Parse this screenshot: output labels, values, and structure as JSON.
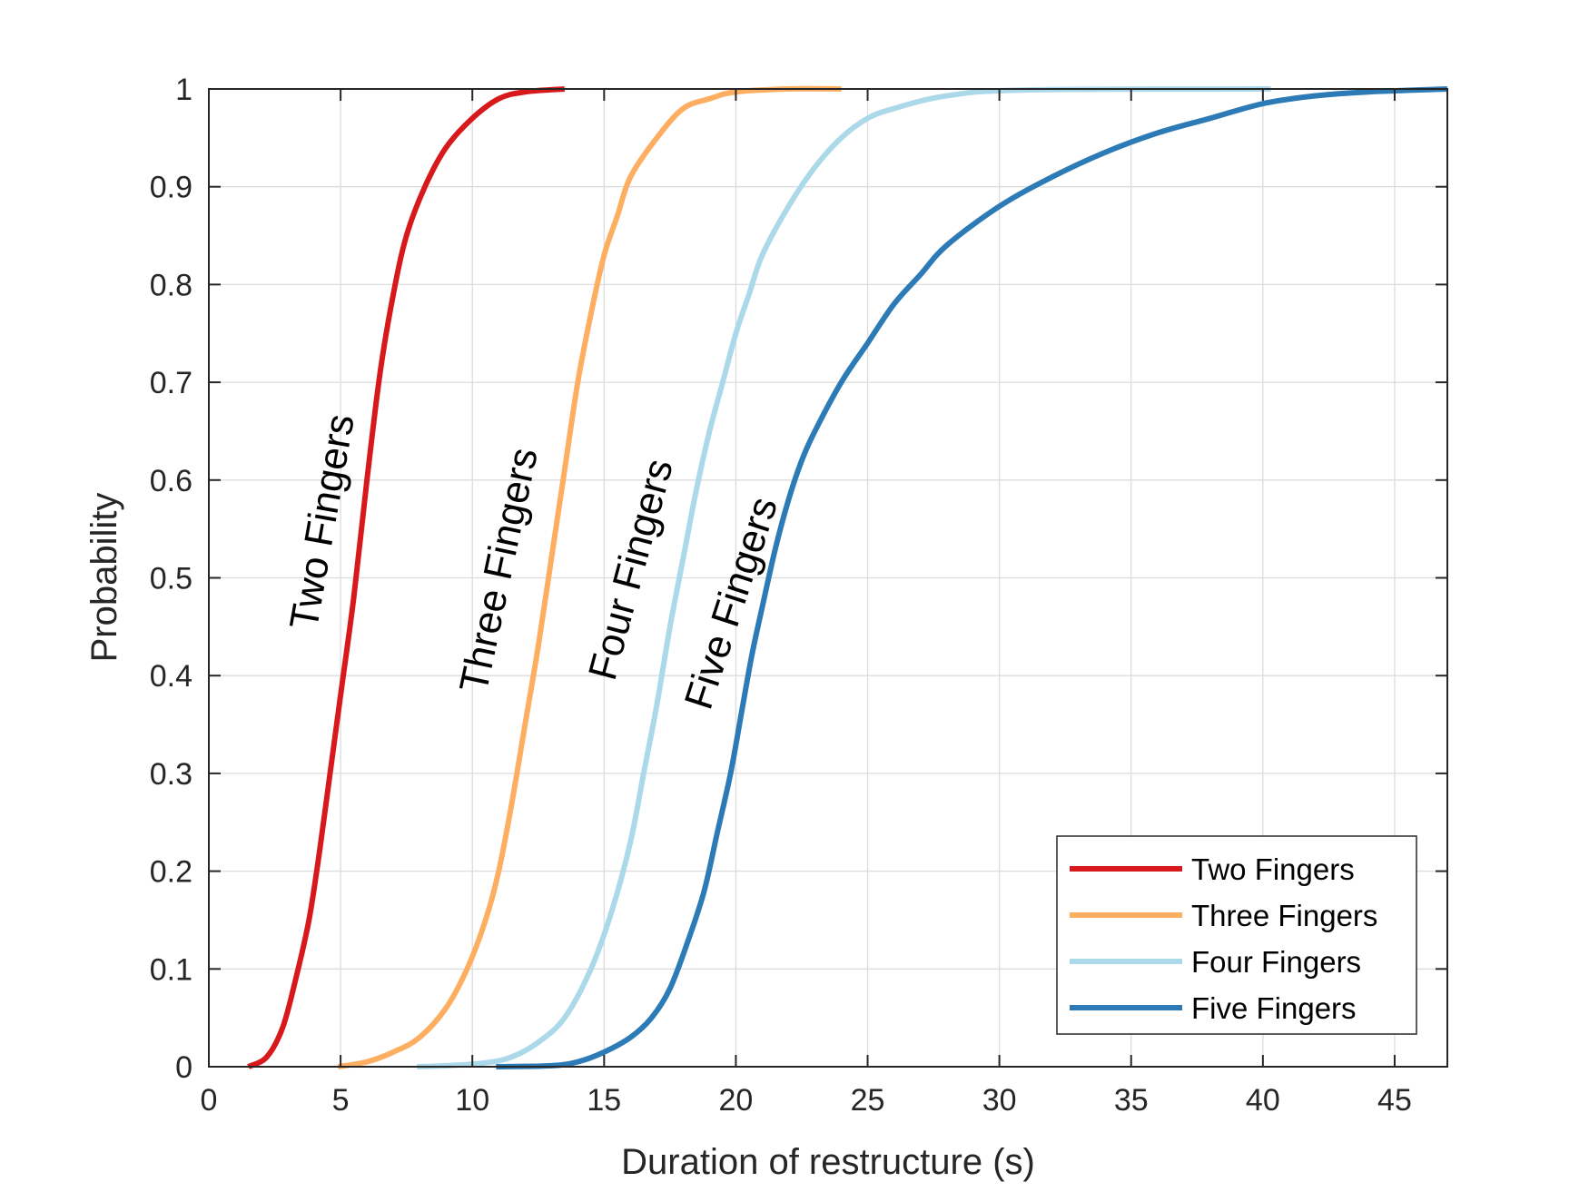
{
  "chart_data": {
    "type": "line",
    "title": "",
    "xlabel": "Duration of restructure (s)",
    "ylabel": "Probability",
    "xlim": [
      0,
      47
    ],
    "ylim": [
      0,
      1
    ],
    "xticks": [
      0,
      5,
      10,
      15,
      20,
      25,
      30,
      35,
      40,
      45
    ],
    "yticks": [
      0,
      0.1,
      0.2,
      0.3,
      0.4,
      0.5,
      0.6,
      0.7,
      0.8,
      0.9,
      1
    ],
    "ytick_labels": [
      "0",
      "0.1",
      "0.2",
      "0.3",
      "0.4",
      "0.5",
      "0.6",
      "0.7",
      "0.8",
      "0.9",
      "1"
    ],
    "grid": true,
    "legend_position": "bottom-right",
    "series": [
      {
        "name": "Two Fingers",
        "color": "#d7191c",
        "points": [
          [
            1.5,
            0
          ],
          [
            2.2,
            0.01
          ],
          [
            2.8,
            0.04
          ],
          [
            3.3,
            0.09
          ],
          [
            3.8,
            0.15
          ],
          [
            4.2,
            0.22
          ],
          [
            4.6,
            0.3
          ],
          [
            5.0,
            0.38
          ],
          [
            5.5,
            0.48
          ],
          [
            6.0,
            0.6
          ],
          [
            6.5,
            0.71
          ],
          [
            7.0,
            0.79
          ],
          [
            7.5,
            0.85
          ],
          [
            8.2,
            0.9
          ],
          [
            9.0,
            0.94
          ],
          [
            10.0,
            0.97
          ],
          [
            11.0,
            0.99
          ],
          [
            12.0,
            0.997
          ],
          [
            13.5,
            1.0
          ]
        ]
      },
      {
        "name": "Three Fingers",
        "color": "#fdae61",
        "points": [
          [
            4.9,
            0
          ],
          [
            6.0,
            0.005
          ],
          [
            7.0,
            0.015
          ],
          [
            8.0,
            0.03
          ],
          [
            9.0,
            0.06
          ],
          [
            9.8,
            0.1
          ],
          [
            10.5,
            0.15
          ],
          [
            11.0,
            0.2
          ],
          [
            11.5,
            0.27
          ],
          [
            12.0,
            0.35
          ],
          [
            12.5,
            0.43
          ],
          [
            13.0,
            0.52
          ],
          [
            13.5,
            0.61
          ],
          [
            14.0,
            0.7
          ],
          [
            14.5,
            0.77
          ],
          [
            15.0,
            0.83
          ],
          [
            15.5,
            0.87
          ],
          [
            16.0,
            0.91
          ],
          [
            17.0,
            0.95
          ],
          [
            18.0,
            0.98
          ],
          [
            19.0,
            0.99
          ],
          [
            20.0,
            0.997
          ],
          [
            22.0,
            1.0
          ],
          [
            24.0,
            1.0
          ]
        ]
      },
      {
        "name": "Four Fingers",
        "color": "#abd9e9",
        "points": [
          [
            7.9,
            0
          ],
          [
            9.0,
            0.001
          ],
          [
            10.5,
            0.004
          ],
          [
            11.5,
            0.01
          ],
          [
            12.5,
            0.025
          ],
          [
            13.5,
            0.05
          ],
          [
            14.5,
            0.1
          ],
          [
            15.3,
            0.16
          ],
          [
            16.0,
            0.23
          ],
          [
            16.5,
            0.3
          ],
          [
            17.0,
            0.37
          ],
          [
            17.5,
            0.45
          ],
          [
            18.0,
            0.52
          ],
          [
            18.5,
            0.59
          ],
          [
            19.0,
            0.65
          ],
          [
            19.5,
            0.7
          ],
          [
            20.0,
            0.75
          ],
          [
            20.5,
            0.79
          ],
          [
            21.0,
            0.83
          ],
          [
            22.0,
            0.88
          ],
          [
            23.0,
            0.92
          ],
          [
            24.0,
            0.95
          ],
          [
            25.0,
            0.97
          ],
          [
            26.0,
            0.98
          ],
          [
            28.0,
            0.993
          ],
          [
            31.0,
            0.999
          ],
          [
            40.3,
            1.0
          ]
        ]
      },
      {
        "name": "Five Fingers",
        "color": "#2c7bb6",
        "points": [
          [
            10.9,
            0
          ],
          [
            13.0,
            0.001
          ],
          [
            14.0,
            0.005
          ],
          [
            15.0,
            0.015
          ],
          [
            16.0,
            0.03
          ],
          [
            16.8,
            0.05
          ],
          [
            17.5,
            0.08
          ],
          [
            18.2,
            0.13
          ],
          [
            18.8,
            0.18
          ],
          [
            19.3,
            0.24
          ],
          [
            19.8,
            0.3
          ],
          [
            20.2,
            0.36
          ],
          [
            20.6,
            0.42
          ],
          [
            21.0,
            0.47
          ],
          [
            21.5,
            0.53
          ],
          [
            22.0,
            0.58
          ],
          [
            22.5,
            0.62
          ],
          [
            23.0,
            0.65
          ],
          [
            24.0,
            0.7
          ],
          [
            25.0,
            0.74
          ],
          [
            26.0,
            0.78
          ],
          [
            27.0,
            0.81
          ],
          [
            28.0,
            0.84
          ],
          [
            30.0,
            0.88
          ],
          [
            32.0,
            0.91
          ],
          [
            34.0,
            0.935
          ],
          [
            36.0,
            0.955
          ],
          [
            38.0,
            0.97
          ],
          [
            40.0,
            0.985
          ],
          [
            42.0,
            0.993
          ],
          [
            44.0,
            0.997
          ],
          [
            47.0,
            1.0
          ]
        ]
      }
    ],
    "annotations": [
      {
        "text": "Two Fingers",
        "x": 4.8,
        "y": 0.555,
        "angle": -80
      },
      {
        "text": "Three Fingers",
        "x": 11.5,
        "y": 0.505,
        "angle": -78
      },
      {
        "text": "Four Fingers",
        "x": 16.5,
        "y": 0.505,
        "angle": -75
      },
      {
        "text": "Five Fingers",
        "x": 20.3,
        "y": 0.47,
        "angle": -72
      }
    ]
  }
}
